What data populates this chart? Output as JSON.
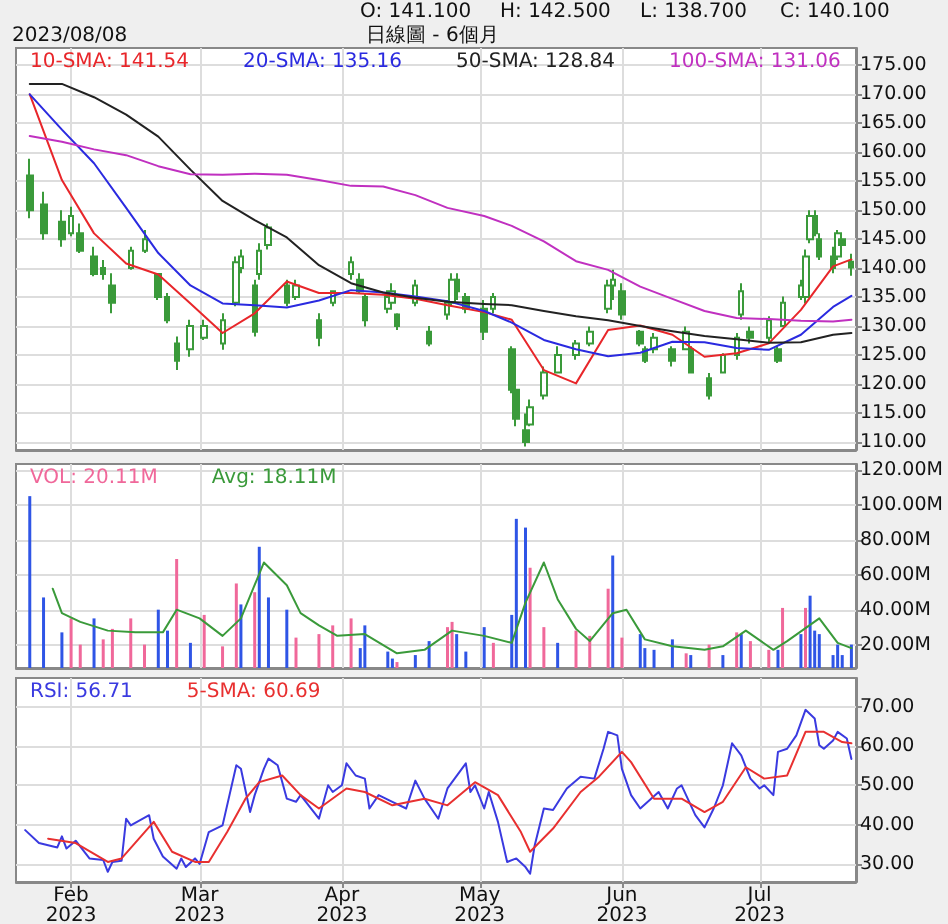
{
  "chart_data": [
    {
      "type": "candlestick",
      "title": "日線圖 - 6個月",
      "color": "#3a9a3a",
      "annotations": [
        "2023/08/08",
        "O: 141.100",
        "H: 142.500",
        "L: 138.700",
        "C: 140.100"
      ],
      "x": [
        "2023-01-23",
        "2023-01-26",
        "2023-01-30",
        "2023-02-01",
        "2023-02-03",
        "2023-02-06",
        "2023-02-08",
        "2023-02-10",
        "2023-02-14",
        "2023-02-17",
        "2023-02-20",
        "2023-02-22",
        "2023-02-24",
        "2023-02-27",
        "2023-03-02",
        "2023-03-06",
        "2023-03-09",
        "2023-03-10",
        "2023-03-13",
        "2023-03-14",
        "2023-03-16",
        "2023-03-20",
        "2023-03-22",
        "2023-03-27",
        "2023-03-30",
        "2023-04-03",
        "2023-04-05",
        "2023-04-06",
        "2023-04-11",
        "2023-04-12",
        "2023-04-13",
        "2023-04-17",
        "2023-04-20",
        "2023-04-24",
        "2023-04-25",
        "2023-04-26",
        "2023-04-28",
        "2023-05-02",
        "2023-05-04",
        "2023-05-08",
        "2023-05-09",
        "2023-05-11",
        "2023-05-12",
        "2023-05-15",
        "2023-05-18",
        "2023-05-22",
        "2023-05-25",
        "2023-05-29",
        "2023-05-30",
        "2023-06-01",
        "2023-06-05",
        "2023-06-06",
        "2023-06-08",
        "2023-06-12",
        "2023-06-15",
        "2023-06-16",
        "2023-06-20",
        "2023-06-23",
        "2023-06-26",
        "2023-06-27",
        "2023-06-29",
        "2023-07-03",
        "2023-07-05",
        "2023-07-06",
        "2023-07-10",
        "2023-07-11",
        "2023-07-12",
        "2023-07-13",
        "2023-07-14",
        "2023-07-17",
        "2023-07-18",
        "2023-07-19",
        "2023-07-21"
      ],
      "ohlc": [
        [
          156,
          158.9,
          148.6,
          150
        ],
        [
          151,
          153.2,
          144.9,
          146
        ],
        [
          148,
          150,
          143.7,
          145
        ],
        [
          146,
          150.6,
          145.5,
          149
        ],
        [
          146,
          147.7,
          142.6,
          143
        ],
        [
          142,
          143.7,
          138.6,
          139
        ],
        [
          140,
          141.4,
          138,
          139
        ],
        [
          137,
          139.1,
          132.2,
          134
        ],
        [
          140,
          143.7,
          139.7,
          143
        ],
        [
          143,
          146.6,
          142.6,
          145
        ],
        [
          139,
          139.1,
          134.5,
          135
        ],
        [
          135,
          135.7,
          130.5,
          131
        ],
        [
          127,
          128.2,
          122.4,
          124
        ],
        [
          126,
          131.1,
          124.7,
          130
        ],
        [
          128,
          131.1,
          127.6,
          130
        ],
        [
          127,
          132.2,
          125.9,
          131
        ],
        [
          134,
          142,
          133.4,
          141
        ],
        [
          140,
          143.2,
          139.1,
          142
        ],
        [
          137,
          138,
          128.2,
          129
        ],
        [
          139,
          144.3,
          138,
          143
        ],
        [
          144,
          147.7,
          143.2,
          147
        ],
        [
          137,
          138,
          133.4,
          134
        ],
        [
          135,
          138,
          134.5,
          137
        ],
        [
          131,
          132.2,
          126.5,
          128
        ],
        [
          134,
          136.2,
          133.4,
          136
        ],
        [
          139,
          142,
          138,
          141
        ],
        [
          138,
          139.1,
          135.7,
          136
        ],
        [
          135,
          135.7,
          129.9,
          131
        ],
        [
          133,
          136.2,
          132.2,
          135
        ],
        [
          134,
          137.4,
          133.4,
          136
        ],
        [
          132,
          132.2,
          129.3,
          130
        ],
        [
          134,
          138,
          133.4,
          137
        ],
        [
          129,
          130,
          126.5,
          127
        ],
        [
          132,
          134.5,
          131.1,
          134
        ],
        [
          134,
          139.1,
          133.4,
          138
        ],
        [
          138,
          139.1,
          134.5,
          136
        ],
        [
          135,
          135.7,
          132.2,
          133
        ],
        [
          133,
          134.5,
          127.6,
          129
        ],
        [
          133,
          135.7,
          132.2,
          135
        ],
        [
          126,
          126.5,
          118.4,
          119
        ],
        [
          119,
          119.6,
          112.7,
          114
        ],
        [
          112,
          114.9,
          109.2,
          110
        ],
        [
          113,
          117.3,
          112.7,
          116
        ],
        [
          118,
          123,
          117.3,
          122
        ],
        [
          122,
          126.5,
          121.9,
          125
        ],
        [
          125,
          127.6,
          124.2,
          127
        ],
        [
          127,
          129.9,
          126.5,
          129
        ],
        [
          133,
          138,
          132.2,
          137
        ],
        [
          137,
          139.7,
          134.5,
          138
        ],
        [
          136,
          137.4,
          131.1,
          132
        ],
        [
          129,
          129.3,
          126.5,
          127
        ],
        [
          126,
          126.5,
          123.6,
          124
        ],
        [
          126,
          128.8,
          125.3,
          128
        ],
        [
          126,
          126.5,
          123,
          124
        ],
        [
          126,
          129.9,
          125.9,
          129
        ],
        [
          126,
          126.5,
          121.9,
          122
        ],
        [
          121,
          121.9,
          117.3,
          118
        ],
        [
          122,
          125.3,
          121.9,
          125
        ],
        [
          125,
          128.8,
          124.2,
          128
        ],
        [
          132,
          137.4,
          131.1,
          136
        ],
        [
          129,
          129.9,
          127,
          128
        ],
        [
          128,
          131.7,
          127,
          131
        ],
        [
          126,
          126.5,
          123.6,
          124
        ],
        [
          130,
          135.1,
          129.9,
          134
        ],
        [
          135,
          138,
          134.5,
          137
        ],
        [
          135,
          143.2,
          133.9,
          142
        ],
        [
          145,
          150,
          144.3,
          149
        ],
        [
          149,
          150,
          145.5,
          146
        ],
        [
          145,
          146,
          141.4,
          142
        ],
        [
          142,
          143.7,
          139.1,
          140
        ],
        [
          142,
          146.6,
          141.4,
          146
        ],
        [
          145,
          146,
          142.6,
          144
        ],
        [
          141.1,
          142.5,
          138.7,
          140.1
        ]
      ],
      "series": [
        {
          "type": "line",
          "name": "10-SMA: 141.54",
          "color": "#e8262a",
          "x": [
            "2023-01-23",
            "2023-01-30",
            "2023-02-06",
            "2023-02-13",
            "2023-02-20",
            "2023-02-27",
            "2023-03-06",
            "2023-03-13",
            "2023-03-20",
            "2023-03-27",
            "2023-04-03",
            "2023-04-10",
            "2023-04-17",
            "2023-04-24",
            "2023-05-02",
            "2023-05-08",
            "2023-05-15",
            "2023-05-22",
            "2023-05-29",
            "2023-06-05",
            "2023-06-12",
            "2023-06-19",
            "2023-06-26",
            "2023-07-03",
            "2023-07-10",
            "2023-07-17",
            "2023-07-21"
          ],
          "values": [
            170,
            155.2,
            146,
            140.8,
            138.9,
            133.9,
            128.8,
            132.2,
            137.7,
            135.7,
            135.7,
            135.4,
            134.7,
            133.6,
            132.4,
            131.1,
            122.4,
            120.1,
            129.3,
            130.1,
            128.5,
            124.7,
            125.3,
            127,
            132.8,
            140.3,
            141.5
          ]
        },
        {
          "type": "line",
          "name": "20-SMA: 135.16",
          "color": "#2a2ae0",
          "x": [
            "2023-01-23",
            "2023-01-30",
            "2023-02-06",
            "2023-02-13",
            "2023-02-20",
            "2023-02-27",
            "2023-03-06",
            "2023-03-13",
            "2023-03-20",
            "2023-03-27",
            "2023-04-03",
            "2023-04-10",
            "2023-04-17",
            "2023-04-24",
            "2023-05-02",
            "2023-05-08",
            "2023-05-15",
            "2023-05-22",
            "2023-05-29",
            "2023-06-05",
            "2023-06-12",
            "2023-06-19",
            "2023-06-26",
            "2023-07-03",
            "2023-07-10",
            "2023-07-17",
            "2023-07-21"
          ],
          "values": [
            170,
            163.9,
            158.1,
            150.4,
            142.6,
            137,
            133.9,
            133.6,
            133.2,
            134.4,
            136.2,
            135.8,
            135.1,
            134.3,
            132.6,
            130.6,
            127.6,
            126,
            124.8,
            125.4,
            127.3,
            127.2,
            126.2,
            125.9,
            128.5,
            133.3,
            135.2
          ]
        },
        {
          "type": "line",
          "name": "50-SMA: 128.84",
          "color": "#222222",
          "x": [
            "2023-01-23",
            "2023-01-30",
            "2023-02-06",
            "2023-02-13",
            "2023-02-20",
            "2023-02-27",
            "2023-03-06",
            "2023-03-13",
            "2023-03-20",
            "2023-03-27",
            "2023-04-03",
            "2023-04-10",
            "2023-04-17",
            "2023-04-24",
            "2023-05-02",
            "2023-05-08",
            "2023-05-15",
            "2023-05-22",
            "2023-05-29",
            "2023-06-05",
            "2023-06-12",
            "2023-06-19",
            "2023-06-26",
            "2023-07-03",
            "2023-07-10",
            "2023-07-17",
            "2023-07-21"
          ],
          "values": [
            171.8,
            171.8,
            169.5,
            166.5,
            162.7,
            157,
            151.6,
            148.3,
            145.3,
            140.5,
            137.4,
            135.8,
            134.9,
            134.2,
            133.8,
            133.6,
            132.6,
            131.7,
            131,
            130,
            129.1,
            128.3,
            127.7,
            127.1,
            127.2,
            128.5,
            128.8
          ]
        },
        {
          "type": "line",
          "name": "100-SMA: 131.06",
          "color": "#c030c0",
          "x": [
            "2023-01-23",
            "2023-01-30",
            "2023-02-06",
            "2023-02-13",
            "2023-02-20",
            "2023-02-27",
            "2023-03-06",
            "2023-03-13",
            "2023-03-20",
            "2023-03-27",
            "2023-04-03",
            "2023-04-10",
            "2023-04-17",
            "2023-04-24",
            "2023-05-02",
            "2023-05-08",
            "2023-05-15",
            "2023-05-22",
            "2023-05-29",
            "2023-06-05",
            "2023-06-12",
            "2023-06-19",
            "2023-06-26",
            "2023-07-03",
            "2023-07-10",
            "2023-07-17",
            "2023-07-21"
          ],
          "values": [
            162.8,
            161.8,
            160.5,
            159.5,
            157.6,
            156.2,
            156.1,
            156.3,
            156.1,
            155.2,
            154.2,
            154.1,
            152.6,
            150.4,
            149,
            147.3,
            144.6,
            141.2,
            139.7,
            136.8,
            134.7,
            132.6,
            131.4,
            131.2,
            130.9,
            130.8,
            131.1
          ]
        }
      ],
      "xlim": [
        "2023-01-20",
        "2023-07-22"
      ],
      "xticks": [
        {
          "value": "2023-02-01",
          "label": null
        },
        {
          "value": "2023-03-01",
          "label": null
        },
        {
          "value": "2023-04-01",
          "label": null
        },
        {
          "value": "2023-05-01",
          "label": null
        },
        {
          "value": "2023-06-01",
          "label": null
        },
        {
          "value": "2023-07-01",
          "label": null
        }
      ],
      "ylim": [
        108.6,
        178
      ],
      "yticks": [
        {
          "value": 110,
          "label": "110.00"
        },
        {
          "value": 115,
          "label": "115.00"
        },
        {
          "value": 120,
          "label": "120.00"
        },
        {
          "value": 125,
          "label": "125.00"
        },
        {
          "value": 130,
          "label": "130.00"
        },
        {
          "value": 135,
          "label": "135.00"
        },
        {
          "value": 140,
          "label": "140.00"
        },
        {
          "value": 145,
          "label": "145.00"
        },
        {
          "value": 150,
          "label": "150.00"
        },
        {
          "value": 155,
          "label": "155.00"
        },
        {
          "value": 160,
          "label": "160.00"
        },
        {
          "value": 165,
          "label": "165.00"
        },
        {
          "value": 170,
          "label": "170.00"
        },
        {
          "value": 175,
          "label": "175.00"
        }
      ],
      "grid": true,
      "legend": "top left",
      "tick_labels": "y",
      "marker": "none"
    },
    {
      "type": "bar",
      "x": [
        "2023-01-23",
        "2023-01-26",
        "2023-01-30",
        "2023-02-01",
        "2023-02-03",
        "2023-02-06",
        "2023-02-08",
        "2023-02-10",
        "2023-02-14",
        "2023-02-17",
        "2023-02-20",
        "2023-02-22",
        "2023-02-24",
        "2023-02-27",
        "2023-03-02",
        "2023-03-06",
        "2023-03-09",
        "2023-03-10",
        "2023-03-13",
        "2023-03-14",
        "2023-03-16",
        "2023-03-20",
        "2023-03-22",
        "2023-03-27",
        "2023-03-30",
        "2023-04-03",
        "2023-04-05",
        "2023-04-06",
        "2023-04-11",
        "2023-04-12",
        "2023-04-13",
        "2023-04-17",
        "2023-04-20",
        "2023-04-24",
        "2023-04-25",
        "2023-04-26",
        "2023-04-28",
        "2023-05-02",
        "2023-05-04",
        "2023-05-08",
        "2023-05-09",
        "2023-05-11",
        "2023-05-12",
        "2023-05-15",
        "2023-05-18",
        "2023-05-22",
        "2023-05-25",
        "2023-05-29",
        "2023-05-30",
        "2023-06-01",
        "2023-06-05",
        "2023-06-06",
        "2023-06-08",
        "2023-06-12",
        "2023-06-15",
        "2023-06-16",
        "2023-06-20",
        "2023-06-23",
        "2023-06-26",
        "2023-06-27",
        "2023-06-29",
        "2023-07-03",
        "2023-07-05",
        "2023-07-06",
        "2023-07-10",
        "2023-07-11",
        "2023-07-12",
        "2023-07-13",
        "2023-07-14",
        "2023-07-17",
        "2023-07-18",
        "2023-07-19",
        "2023-07-21"
      ],
      "series": [
        {
          "type": "bar",
          "name": "VOL: 20.11M",
          "color": "#f0689a",
          "values": [
            105,
            47,
            27,
            35,
            20,
            35,
            23,
            29,
            35,
            20,
            40,
            28,
            69,
            21,
            37,
            19,
            55,
            43,
            50,
            76,
            47,
            40,
            24,
            26,
            31,
            35,
            18,
            31,
            16,
            12,
            10,
            14,
            22,
            30,
            33,
            26,
            16,
            30,
            21,
            37,
            92,
            87,
            64,
            30,
            21,
            28,
            25,
            52,
            71,
            24,
            26,
            18,
            17,
            23,
            15,
            14,
            20,
            14,
            27,
            26,
            22,
            17,
            17,
            41,
            26,
            41,
            48,
            28,
            26,
            14,
            20,
            14,
            20
          ],
          "colors": [
            "#2f55e6",
            "#2f55e6",
            "#2f55e6",
            "#f0689a",
            "#f0689a",
            "#2f55e6",
            "#f0689a",
            "#f0689a",
            "#f0689a",
            "#f0689a",
            "#2f55e6",
            "#2f55e6",
            "#f0689a",
            "#2f55e6",
            "#f0689a",
            "#f0689a",
            "#f0689a",
            "#2f55e6",
            "#f0689a",
            "#2f55e6",
            "#2f55e6",
            "#2f55e6",
            "#f0689a",
            "#f0689a",
            "#f0689a",
            "#f0689a",
            "#2f55e6",
            "#2f55e6",
            "#2f55e6",
            "#2f55e6",
            "#f0689a",
            "#2f55e6",
            "#2f55e6",
            "#f0689a",
            "#f0689a",
            "#2f55e6",
            "#2f55e6",
            "#2f55e6",
            "#f0689a",
            "#2f55e6",
            "#2f55e6",
            "#2f55e6",
            "#f0689a",
            "#f0689a",
            "#2f55e6",
            "#f0689a",
            "#f0689a",
            "#f0689a",
            "#2f55e6",
            "#f0689a",
            "#2f55e6",
            "#2f55e6",
            "#2f55e6",
            "#2f55e6",
            "#f0689a",
            "#2f55e6",
            "#f0689a",
            "#2f55e6",
            "#f0689a",
            "#2f55e6",
            "#f0689a",
            "#f0689a",
            "#2f55e6",
            "#f0689a",
            "#2f55e6",
            "#f0689a",
            "#2f55e6",
            "#2f55e6",
            "#2f55e6",
            "#2f55e6",
            "#2f55e6",
            "#2f55e6",
            "#2f55e6"
          ]
        },
        {
          "type": "line",
          "name": "Avg: 18.11M",
          "color": "#3a9a3a",
          "x": [
            "2023-01-28",
            "2023-01-30",
            "2023-02-03",
            "2023-02-09",
            "2023-02-15",
            "2023-02-21",
            "2023-02-24",
            "2023-03-01",
            "2023-03-06",
            "2023-03-10",
            "2023-03-15",
            "2023-03-20",
            "2023-03-23",
            "2023-03-27",
            "2023-03-31",
            "2023-04-06",
            "2023-04-13",
            "2023-04-19",
            "2023-04-25",
            "2023-05-02",
            "2023-05-08",
            "2023-05-11",
            "2023-05-15",
            "2023-05-18",
            "2023-05-22",
            "2023-05-25",
            "2023-05-30",
            "2023-06-02",
            "2023-06-06",
            "2023-06-12",
            "2023-06-19",
            "2023-06-23",
            "2023-06-28",
            "2023-07-04",
            "2023-07-07",
            "2023-07-14",
            "2023-07-18",
            "2023-07-21"
          ],
          "values": [
            52,
            38,
            33,
            28,
            27,
            27,
            40,
            35,
            25,
            35,
            67,
            54,
            38,
            31,
            25,
            26,
            15,
            17,
            28,
            25,
            21,
            44,
            67,
            46,
            29,
            22,
            38,
            40,
            23,
            19,
            17,
            19,
            28,
            17,
            22,
            35,
            21,
            18
          ]
        }
      ],
      "xlim": [
        "2023-01-20",
        "2023-07-22"
      ],
      "xticks": [
        {
          "value": "2023-02-01",
          "label": null
        },
        {
          "value": "2023-03-01",
          "label": null
        },
        {
          "value": "2023-04-01",
          "label": null
        },
        {
          "value": "2023-05-01",
          "label": null
        },
        {
          "value": "2023-06-01",
          "label": null
        },
        {
          "value": "2023-07-01",
          "label": null
        }
      ],
      "ylim": [
        6.6,
        123.4
      ],
      "yticks": [
        {
          "value": 20,
          "label": "20.00M"
        },
        {
          "value": 40,
          "label": "40.00M"
        },
        {
          "value": 60,
          "label": "60.00M"
        },
        {
          "value": 80,
          "label": "80.00M"
        },
        {
          "value": 100,
          "label": "100.00M"
        },
        {
          "value": 120,
          "label": "120.00M"
        }
      ],
      "grid": true,
      "legend": "top left",
      "tick_labels": "y",
      "marker": "none"
    },
    {
      "type": "line",
      "series": [
        {
          "name": "RSI: 56.71",
          "color": "#3a3ae0",
          "x": [
            "2023-01-22",
            "2023-01-25",
            "2023-01-29",
            "2023-01-30",
            "2023-01-31",
            "2023-02-02",
            "2023-02-05",
            "2023-02-08",
            "2023-02-09",
            "2023-02-10",
            "2023-02-12",
            "2023-02-13",
            "2023-02-14",
            "2023-02-18",
            "2023-02-19",
            "2023-02-21",
            "2023-02-24",
            "2023-02-25",
            "2023-02-26",
            "2023-02-28",
            "2023-03-01",
            "2023-03-03",
            "2023-03-06",
            "2023-03-09",
            "2023-03-10",
            "2023-03-12",
            "2023-03-13",
            "2023-03-15",
            "2023-03-16",
            "2023-03-18",
            "2023-03-20",
            "2023-03-22",
            "2023-03-23",
            "2023-03-27",
            "2023-03-29",
            "2023-03-30",
            "2023-04-01",
            "2023-04-02",
            "2023-04-04",
            "2023-04-06",
            "2023-04-07",
            "2023-04-09",
            "2023-04-12",
            "2023-04-15",
            "2023-04-17",
            "2023-04-19",
            "2023-04-22",
            "2023-04-24",
            "2023-04-28",
            "2023-04-29",
            "2023-04-30",
            "2023-05-02",
            "2023-05-03",
            "2023-05-05",
            "2023-05-07",
            "2023-05-09",
            "2023-05-11",
            "2023-05-12",
            "2023-05-13",
            "2023-05-15",
            "2023-05-17",
            "2023-05-20",
            "2023-05-23",
            "2023-05-26",
            "2023-05-28",
            "2023-05-29",
            "2023-05-31",
            "2023-06-01",
            "2023-06-03",
            "2023-06-05",
            "2023-06-09",
            "2023-06-11",
            "2023-06-13",
            "2023-06-14",
            "2023-06-17",
            "2023-06-19",
            "2023-06-21",
            "2023-06-23",
            "2023-06-25",
            "2023-06-27",
            "2023-06-29",
            "2023-07-01",
            "2023-07-02",
            "2023-07-04",
            "2023-07-05",
            "2023-07-07",
            "2023-07-09",
            "2023-07-11",
            "2023-07-13",
            "2023-07-14",
            "2023-07-15",
            "2023-07-17",
            "2023-07-18",
            "2023-07-20",
            "2023-07-21"
          ],
          "values": [
            38.6,
            35.3,
            34.2,
            37,
            33.9,
            35.9,
            31.4,
            31,
            28,
            30.5,
            30.8,
            41.5,
            39.8,
            42.4,
            36.4,
            31.9,
            28.8,
            31.4,
            29.2,
            31.4,
            30,
            38.1,
            39.8,
            55.1,
            54.2,
            43.2,
            47.5,
            54.2,
            56.8,
            55.1,
            46.6,
            45.8,
            47.5,
            41.5,
            50,
            48.3,
            50,
            55.6,
            52.5,
            51.7,
            44.1,
            47.5,
            45.8,
            44.1,
            51.2,
            46.6,
            41.5,
            49.2,
            55.6,
            48.3,
            50,
            44.1,
            48.3,
            40.7,
            30.5,
            31.4,
            29.2,
            27.5,
            34.7,
            44.1,
            43.7,
            49.2,
            52.2,
            51.7,
            59.3,
            63.6,
            62.7,
            54.2,
            47.5,
            44.1,
            48.3,
            44.1,
            49.2,
            50,
            42.4,
            39.3,
            44.1,
            50,
            60.7,
            57.6,
            51.7,
            49.2,
            50,
            47.5,
            58.5,
            59.3,
            62.7,
            69.2,
            67,
            60.2,
            59.3,
            61.4,
            63.6,
            61.9,
            56.7
          ]
        },
        {
          "name": "5-SMA: 60.69",
          "color": "#e83030",
          "x": [
            "2023-01-27",
            "2023-02-02",
            "2023-02-09",
            "2023-02-12",
            "2023-02-19",
            "2023-02-23",
            "2023-02-28",
            "2023-03-03",
            "2023-03-07",
            "2023-03-11",
            "2023-03-14",
            "2023-03-19",
            "2023-03-23",
            "2023-03-27",
            "2023-04-02",
            "2023-04-06",
            "2023-04-12",
            "2023-04-19",
            "2023-04-24",
            "2023-04-30",
            "2023-05-05",
            "2023-05-10",
            "2023-05-12",
            "2023-05-17",
            "2023-05-23",
            "2023-05-27",
            "2023-06-01",
            "2023-06-03",
            "2023-06-08",
            "2023-06-14",
            "2023-06-19",
            "2023-06-23",
            "2023-06-28",
            "2023-07-02",
            "2023-07-07",
            "2023-07-11",
            "2023-07-15",
            "2023-07-19",
            "2023-07-21"
          ],
          "values": [
            36.4,
            35.3,
            30.5,
            31.4,
            40.7,
            33.1,
            30.5,
            30.5,
            38.1,
            46.6,
            50.8,
            52.5,
            47.5,
            44.1,
            49.2,
            48.3,
            44.9,
            46.6,
            44.9,
            50.8,
            47.5,
            38.1,
            33.1,
            39,
            48.3,
            52.2,
            58.5,
            55.9,
            46.6,
            46.6,
            43.2,
            45.8,
            54.6,
            51.7,
            52.5,
            63.6,
            63.6,
            61,
            60.7
          ]
        }
      ],
      "xlim": [
        "2023-01-20",
        "2023-07-22"
      ],
      "xticks": [
        {
          "value": "2023-02-01",
          "label": "Feb\n2023"
        },
        {
          "value": "2023-03-01",
          "label": "Mar\n2023"
        },
        {
          "value": "2023-04-01",
          "label": "Apr\n2023"
        },
        {
          "value": "2023-05-01",
          "label": "May\n2023"
        },
        {
          "value": "2023-06-01",
          "label": "Jun\n2023"
        },
        {
          "value": "2023-07-01",
          "label": "Jul\n2023"
        }
      ],
      "ylim": [
        25.4,
        77.3
      ],
      "yticks": [
        {
          "value": 30,
          "label": "30.00"
        },
        {
          "value": 40,
          "label": "40.00"
        },
        {
          "value": 50,
          "label": "50.00"
        },
        {
          "value": 60,
          "label": "60.00"
        },
        {
          "value": 70,
          "label": "70.00"
        }
      ],
      "grid": true,
      "legend": "top left",
      "marker": "none"
    }
  ]
}
